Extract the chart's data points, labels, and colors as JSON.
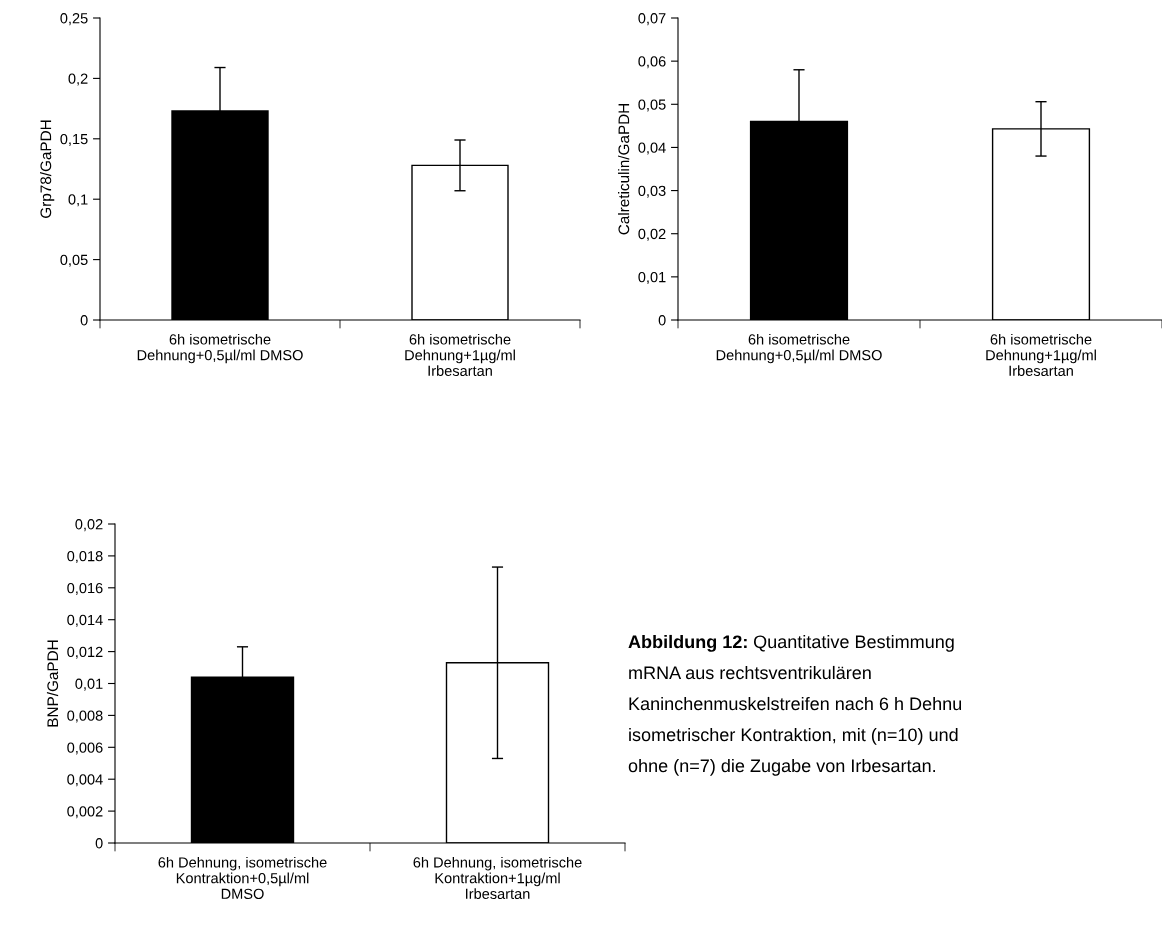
{
  "chart_data": [
    {
      "type": "bar",
      "ylabel": "Grp78/GaPDH",
      "categories": [
        "6h isometrische\nDehnung+0,5µl/ml DMSO",
        "6h isometrische\nDehnung+1µg/ml\nIrbesartan"
      ],
      "values": [
        0.173,
        0.128
      ],
      "errors": [
        0.036,
        0.021
      ],
      "colors": [
        "#000000",
        "#ffffff"
      ],
      "ylim": [
        0,
        0.25
      ],
      "yticks": [
        {
          "value": 0,
          "label": "0"
        },
        {
          "value": 0.05,
          "label": "0,05"
        },
        {
          "value": 0.1,
          "label": "0,1"
        },
        {
          "value": 0.15,
          "label": "0,15"
        },
        {
          "value": 0.2,
          "label": "0,2"
        },
        {
          "value": 0.25,
          "label": "0,25"
        }
      ],
      "grid": false
    },
    {
      "type": "bar",
      "ylabel": "Calreticulin/GaPDH",
      "categories": [
        "6h isometrische\nDehnung+0,5µl/ml DMSO",
        "6h isometrische\nDehnung+1µg/ml\nIrbesartan"
      ],
      "values": [
        0.046,
        0.0443
      ],
      "errors": [
        0.012,
        0.0063
      ],
      "colors": [
        "#000000",
        "#ffffff"
      ],
      "ylim": [
        0,
        0.07
      ],
      "yticks": [
        {
          "value": 0,
          "label": "0"
        },
        {
          "value": 0.01,
          "label": "0,01"
        },
        {
          "value": 0.02,
          "label": "0,02"
        },
        {
          "value": 0.03,
          "label": "0,03"
        },
        {
          "value": 0.04,
          "label": "0,04"
        },
        {
          "value": 0.05,
          "label": "0,05"
        },
        {
          "value": 0.06,
          "label": "0,06"
        },
        {
          "value": 0.07,
          "label": "0,07"
        }
      ],
      "grid": false
    },
    {
      "type": "bar",
      "ylabel": "BNP/GaPDH",
      "categories": [
        "6h Dehnung, isometrische\nKontraktion+0,5µl/ml\nDMSO",
        "6h Dehnung, isometrische\nKontraktion+1µg/ml\nIrbesartan"
      ],
      "values": [
        0.0104,
        0.0113
      ],
      "errors": [
        0.0019,
        0.006
      ],
      "colors": [
        "#000000",
        "#ffffff"
      ],
      "ylim": [
        0,
        0.02
      ],
      "yticks": [
        {
          "value": 0,
          "label": "0"
        },
        {
          "value": 0.002,
          "label": "0,002"
        },
        {
          "value": 0.004,
          "label": "0,004"
        },
        {
          "value": 0.006,
          "label": "0,006"
        },
        {
          "value": 0.008,
          "label": "0,008"
        },
        {
          "value": 0.01,
          "label": "0,01"
        },
        {
          "value": 0.012,
          "label": "0,012"
        },
        {
          "value": 0.014,
          "label": "0,014"
        },
        {
          "value": 0.016,
          "label": "0,016"
        },
        {
          "value": 0.018,
          "label": "0,018"
        },
        {
          "value": 0.02,
          "label": "0,02"
        }
      ],
      "grid": false,
      "annotations": [
        "Abbildung 12:",
        "Quantitative Bestimmung\nmRNA aus rechtsventrikulären\nKaninchenmuskelstreifen nach 6 h Dehnu\nisometrischer Kontraktion, mit (n=10) und\nohne (n=7) die Zugabe von Irbesartan."
      ]
    }
  ]
}
